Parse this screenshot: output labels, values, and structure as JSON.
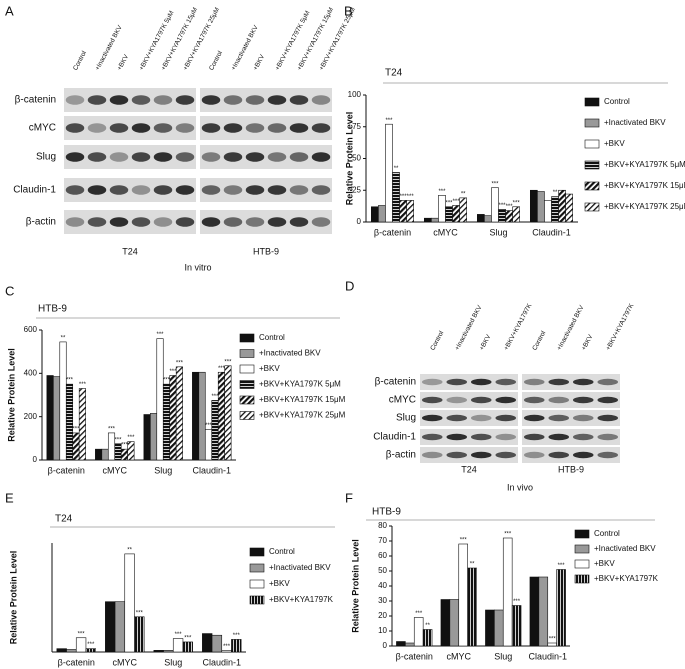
{
  "chart_data": [
    {
      "type": "bar",
      "panel": "B",
      "title": "T24",
      "y_label": "Relative Protein Level",
      "categories": [
        "β-catenin",
        "cMYC",
        "Slug",
        "Claudin-1"
      ],
      "ylim": [
        0,
        100
      ],
      "yticks": [
        0,
        25,
        50,
        75,
        100
      ],
      "series": [
        {
          "name": "Control",
          "color": "#111111",
          "values": [
            12,
            3,
            6,
            25
          ]
        },
        {
          "name": "+Inactivated BKV",
          "color": "#999999",
          "values": [
            13,
            3,
            5,
            24
          ]
        },
        {
          "name": "+BKV",
          "color": "#ffffff",
          "values": [
            77,
            21,
            27,
            17
          ],
          "significance": [
            "***",
            "***",
            "***",
            null
          ]
        },
        {
          "name": "+BKV+KYA1797K 5μM",
          "color": "#111111",
          "pattern": "hlines",
          "values": [
            39,
            12,
            10,
            20
          ],
          "significance": [
            "**",
            "***",
            "***",
            "**"
          ]
        },
        {
          "name": "+BKV+KYA1797K 15μM",
          "color": "#111111",
          "pattern": "diag",
          "values": [
            17,
            13,
            9,
            25
          ],
          "significance": [
            "***",
            "***",
            "***",
            null
          ]
        },
        {
          "name": "+BKV+KYA1797K 25μM",
          "color": "#111111",
          "pattern": "diag-light",
          "values": [
            17,
            19,
            12,
            22
          ],
          "significance": [
            "***",
            "**",
            "***",
            null
          ]
        }
      ]
    },
    {
      "type": "bar",
      "panel": "C",
      "title": "HTB-9",
      "y_label": "Relative Protein Level",
      "categories": [
        "β-catenin",
        "cMYC",
        "Slug",
        "Claudin-1"
      ],
      "ylim": [
        0,
        600
      ],
      "yticks": [
        0,
        200,
        400,
        600
      ],
      "series": [
        {
          "name": "Control",
          "color": "#111111",
          "values": [
            390,
            50,
            210,
            405
          ]
        },
        {
          "name": "+Inactivated BKV",
          "color": "#999999",
          "values": [
            385,
            50,
            215,
            405
          ]
        },
        {
          "name": "+BKV",
          "color": "#ffffff",
          "values": [
            545,
            125,
            560,
            140
          ],
          "significance": [
            "**",
            "***",
            "***",
            "***"
          ]
        },
        {
          "name": "+BKV+KYA1797K 5μM",
          "color": "#111111",
          "pattern": "hlines",
          "values": [
            350,
            75,
            350,
            275
          ],
          "significance": [
            "***",
            "***",
            "***",
            "***"
          ]
        },
        {
          "name": "+BKV+KYA1797K 15μM",
          "color": "#111111",
          "pattern": "diag",
          "values": [
            125,
            50,
            390,
            405
          ],
          "significance": [
            "***",
            "***",
            "***",
            "***"
          ]
        },
        {
          "name": "+BKV+KYA1797K 25μM",
          "color": "#111111",
          "pattern": "diag-light",
          "values": [
            330,
            85,
            430,
            435
          ],
          "significance": [
            "***",
            "***",
            "***",
            "***"
          ]
        }
      ]
    },
    {
      "type": "bar",
      "panel": "E",
      "title": "T24",
      "y_label": "Relative Protein Level",
      "categories": [
        "β-catenin",
        "cMYC",
        "Slug",
        "Claudin-1"
      ],
      "ylim": [
        0,
        130
      ],
      "series": [
        {
          "name": "Control",
          "color": "#111111",
          "values": [
            4,
            60,
            2,
            22
          ]
        },
        {
          "name": "+Inactivated BKV",
          "color": "#999999",
          "values": [
            3,
            60,
            2,
            20
          ]
        },
        {
          "name": "+BKV",
          "color": "#ffffff",
          "values": [
            17,
            117,
            16,
            2
          ],
          "significance": [
            "***",
            "**",
            "***",
            "***"
          ]
        },
        {
          "name": "+BKV+KYA1797K",
          "color": "#111111",
          "pattern": "vlines",
          "values": [
            4,
            42,
            12,
            15
          ],
          "significance": [
            "***",
            "***",
            "***",
            "***"
          ]
        }
      ]
    },
    {
      "type": "bar",
      "panel": "F",
      "title": "HTB-9",
      "y_label": "Relative Protein Level",
      "categories": [
        "β-catenin",
        "cMYC",
        "Slug",
        "Claudin-1"
      ],
      "ylim": [
        0,
        80
      ],
      "yticks": [
        0,
        10,
        20,
        30,
        40,
        50,
        60,
        70,
        80
      ],
      "series": [
        {
          "name": "Control",
          "color": "#111111",
          "values": [
            3,
            31,
            24,
            46
          ]
        },
        {
          "name": "+Inactivated BKV",
          "color": "#999999",
          "values": [
            2,
            31,
            24,
            46
          ]
        },
        {
          "name": "+BKV",
          "color": "#ffffff",
          "values": [
            19,
            68,
            72,
            2
          ],
          "significance": [
            "***",
            "***",
            "***",
            "***"
          ]
        },
        {
          "name": "+BKV+KYA1797K",
          "color": "#111111",
          "pattern": "vlines",
          "values": [
            11,
            52,
            27,
            51
          ],
          "significance": [
            "**",
            "**",
            "***",
            "***"
          ]
        }
      ]
    }
  ],
  "blots": [
    {
      "panel": "A",
      "rows": [
        "β-catenin",
        "cMYC",
        "Slug",
        "Claudin-1",
        "β-actin"
      ],
      "lanes": [
        "Control",
        "+Inactivated BKV",
        "+BKV",
        "+BKV+KYA1797K 5μM",
        "+BKV+KYA1797K 15μM",
        "+BKV+KYA1797K 25μM",
        "Control",
        "+Inactivated BKV",
        "+BKV",
        "+BKV+KYA1797K 5μM",
        "+BKV+KYA1797K 15μM",
        "+BKV+KYA1797K 25μM"
      ],
      "groups": [
        "T24",
        "HTB-9"
      ],
      "caption": "In vitro"
    },
    {
      "panel": "D",
      "rows": [
        "β-catenin",
        "cMYC",
        "Slug",
        "Claudin-1",
        "β-actin"
      ],
      "lanes": [
        "Control",
        "+Inactivated BKV",
        "+BKV",
        "+BKV+KYA1797K",
        "Control",
        "+Inactivated BKV",
        "+BKV",
        "+BKV+KYA1797K"
      ],
      "groups": [
        "T24",
        "HTB-9"
      ],
      "caption": "In vivo"
    }
  ]
}
